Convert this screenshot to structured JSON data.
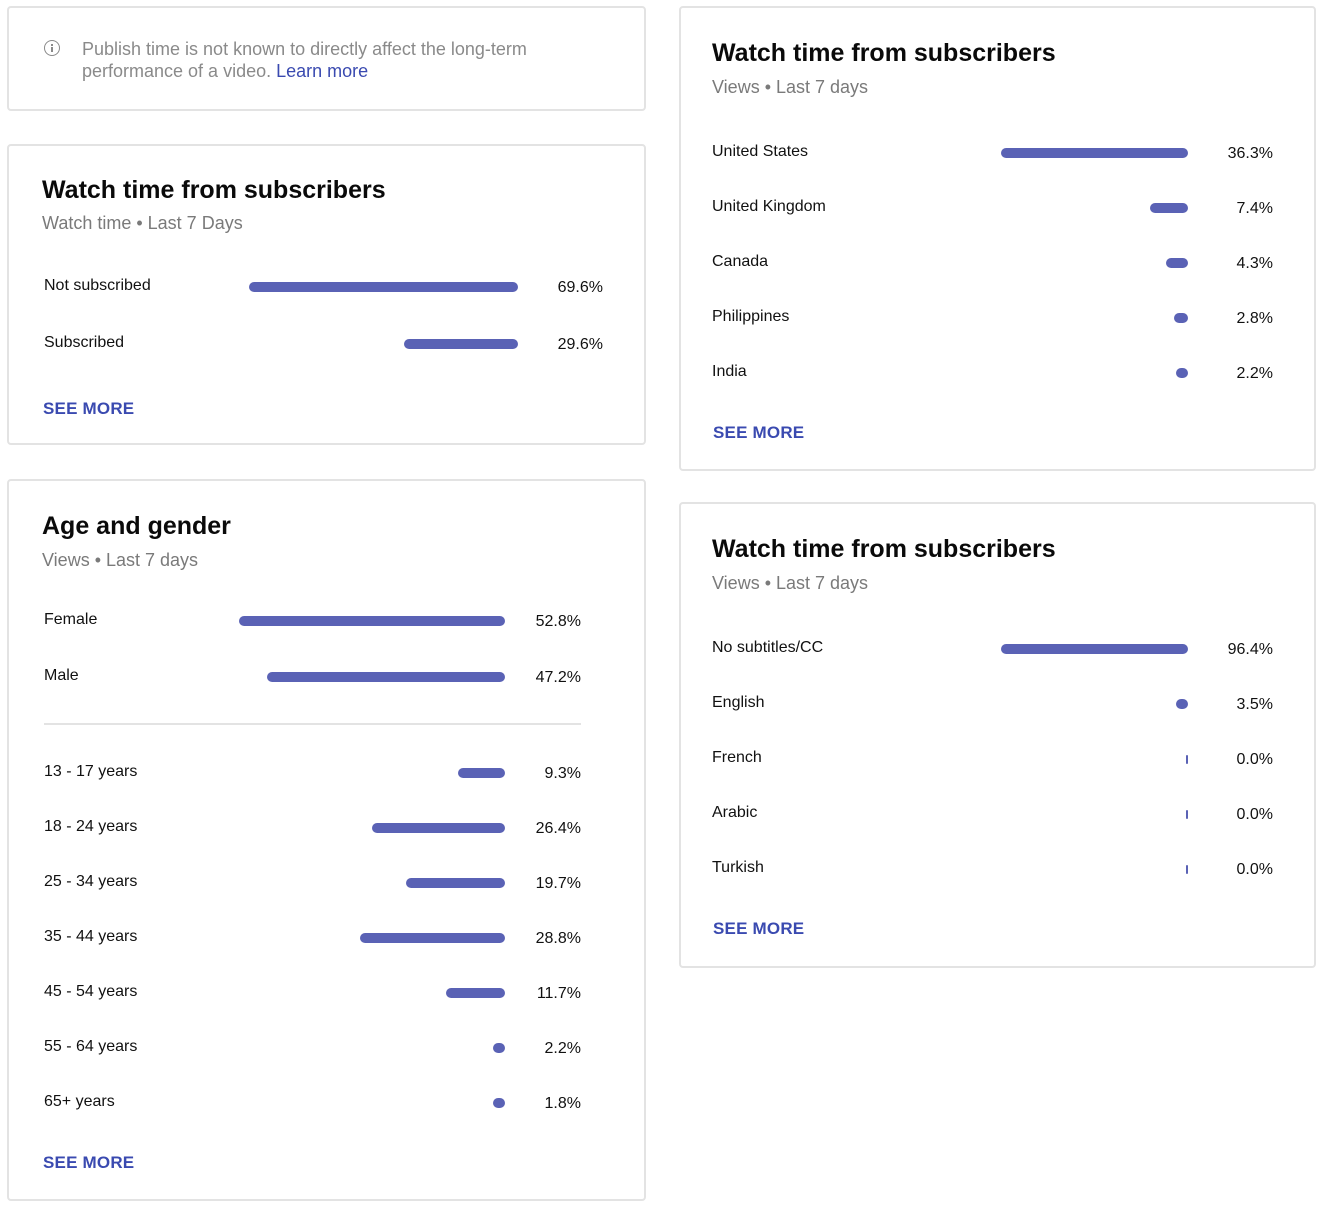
{
  "notice": {
    "text": "Publish time is not known to directly affect the long-term performance of a video.",
    "link": "Learn more"
  },
  "subscribers_card": {
    "title": "Watch time from subscribers",
    "subtitle": "Watch time • Last 7 Days",
    "rows": [
      {
        "label": "Not subscribed",
        "value": "69.6%",
        "pct": 69.6
      },
      {
        "label": "Subscribed",
        "value": "29.6%",
        "pct": 29.6
      }
    ],
    "see_more": "SEE MORE"
  },
  "age_gender_card": {
    "title": "Age and gender",
    "subtitle": "Views • Last 7 days",
    "gender_rows": [
      {
        "label": "Female",
        "value": "52.8%",
        "pct": 52.8
      },
      {
        "label": "Male",
        "value": "47.2%",
        "pct": 47.2
      }
    ],
    "age_rows": [
      {
        "label": "13 - 17 years",
        "value": "9.3%",
        "pct": 9.3
      },
      {
        "label": "18 - 24 years",
        "value": "26.4%",
        "pct": 26.4
      },
      {
        "label": "25 - 34 years",
        "value": "19.7%",
        "pct": 19.7
      },
      {
        "label": "35 - 44 years",
        "value": "28.8%",
        "pct": 28.8
      },
      {
        "label": "45 - 54 years",
        "value": "11.7%",
        "pct": 11.7
      },
      {
        "label": "55 - 64 years",
        "value": "2.2%",
        "pct": 2.2
      },
      {
        "label": "65+ years",
        "value": "1.8%",
        "pct": 1.8
      }
    ],
    "see_more": "SEE MORE"
  },
  "geography_card": {
    "title": "Watch time from subscribers",
    "subtitle": "Views • Last 7 days",
    "rows": [
      {
        "label": "United States",
        "value": "36.3%",
        "pct": 36.3
      },
      {
        "label": "United Kingdom",
        "value": "7.4%",
        "pct": 7.4
      },
      {
        "label": "Canada",
        "value": "4.3%",
        "pct": 4.3
      },
      {
        "label": "Philippines",
        "value": "2.8%",
        "pct": 2.8
      },
      {
        "label": "India",
        "value": "2.2%",
        "pct": 2.2
      }
    ],
    "see_more": "SEE MORE"
  },
  "subtitles_card": {
    "title": "Watch time from subscribers",
    "subtitle": "Views • Last 7 days",
    "rows": [
      {
        "label": "No subtitles/CC",
        "value": "96.4%",
        "pct": 96.4
      },
      {
        "label": "English",
        "value": "3.5%",
        "pct": 3.5
      },
      {
        "label": "French",
        "value": "0.0%",
        "pct": 0
      },
      {
        "label": "Arabic",
        "value": "0.0%",
        "pct": 0
      },
      {
        "label": "Turkish",
        "value": "0.0%",
        "pct": 0
      }
    ],
    "see_more": "SEE MORE"
  },
  "colors": {
    "bar": "#5a62b5",
    "link": "#3a4ab0",
    "muted": "#7a7a7a",
    "border": "#e3e3e3"
  }
}
